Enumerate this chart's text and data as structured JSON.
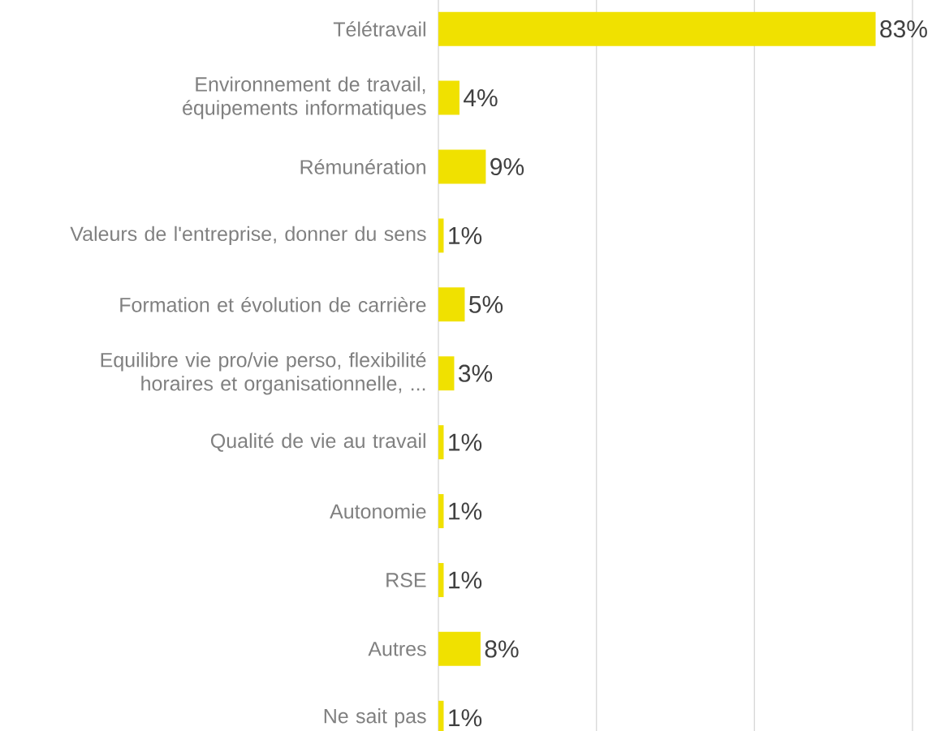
{
  "chart_data": {
    "type": "bar",
    "orientation": "horizontal",
    "categories": [
      "Télétravail",
      "Environnement de travail, équipements informatiques",
      "Rémunération",
      "Valeurs de l'entreprise, donner du sens",
      "Formation et évolution de carrière",
      "Equilibre vie pro/vie perso, flexibilité horaires et organisationnelle, ...",
      "Qualité de vie au travail",
      "Autonomie",
      "RSE",
      "Autres",
      "Ne sait pas"
    ],
    "values": [
      83,
      4,
      9,
      1,
      5,
      3,
      1,
      1,
      1,
      8,
      1
    ],
    "value_labels": [
      "83%",
      "4%",
      "9%",
      "1%",
      "5%",
      "3%",
      "1%",
      "1%",
      "1%",
      "8%",
      "1%"
    ],
    "color": "#f0e100",
    "xlim": [
      0,
      90
    ],
    "xticks": [
      {
        "value": 0,
        "label": null
      },
      {
        "value": 30,
        "label": null
      },
      {
        "value": 60,
        "label": null
      },
      {
        "value": 90,
        "label": null
      }
    ],
    "grid": "x",
    "tick_labels": "y"
  }
}
